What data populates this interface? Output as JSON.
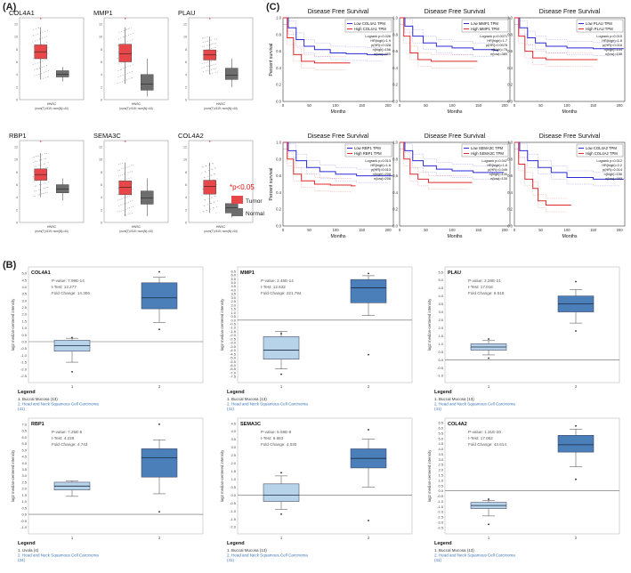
{
  "panels": {
    "a": "(A)",
    "b": "(B)",
    "c": "(C)"
  },
  "legend_a": {
    "sig": "*p<0.05",
    "tumor": "Tumor",
    "normal": "Normal",
    "tumor_color": "#e8474a",
    "normal_color": "#6d6d6d"
  },
  "colors": {
    "low": "#2b2bd6",
    "high": "#e02828",
    "box_b": "#4a7fb9",
    "box_b_light": "#b7d3ea",
    "blue_text": "#3b73b6"
  },
  "chart_data": [
    {
      "type": "box",
      "panel": "A",
      "y_ticks": [
        "0",
        "2",
        "4",
        "6",
        "8",
        "10",
        "12"
      ],
      "ylim": [
        0,
        13
      ],
      "plots": [
        {
          "gene": "COL4A1",
          "xcat": "HNSC",
          "xsub": "(num(T)=519; num(N)=44)",
          "tumor": [
            3.2,
            6.5,
            7.6,
            8.7,
            11.5
          ],
          "normal": [
            2.9,
            3.6,
            4.0,
            4.6,
            5.2
          ]
        },
        {
          "gene": "MMP1",
          "xcat": "HNSC",
          "xsub": "(num(T)=519; num(N)=44)",
          "tumor": [
            2.5,
            6.0,
            7.3,
            8.8,
            11.5
          ],
          "normal": [
            0.5,
            1.5,
            2.5,
            4.0,
            6.5
          ]
        },
        {
          "gene": "PLAU",
          "xcat": "HNSC",
          "xsub": "(num(T)=519; num(N)=44)",
          "tumor": [
            4.0,
            6.3,
            7.1,
            7.9,
            10.0
          ],
          "normal": [
            2.0,
            3.2,
            3.9,
            5.0,
            6.5
          ]
        },
        {
          "gene": "RBP1",
          "xcat": "HNSC",
          "xsub": "(num(T)=519; num(N)=44)",
          "tumor": [
            4.0,
            6.7,
            7.6,
            8.5,
            11.0
          ],
          "normal": [
            3.5,
            4.7,
            5.3,
            6.0,
            7.0
          ]
        },
        {
          "gene": "SEMA3C",
          "xcat": "HNSC",
          "xsub": "(num(T)=519; num(N)=44)",
          "tumor": [
            1.0,
            4.4,
            5.6,
            6.6,
            9.5
          ],
          "normal": [
            1.0,
            2.9,
            3.9,
            5.0,
            7.0
          ]
        },
        {
          "gene": "COL4A2",
          "xcat": "HNSC",
          "xsub": "(num(T)=519; num(N)=44)",
          "tumor": [
            1.5,
            4.5,
            5.7,
            6.7,
            9.5
          ],
          "normal": [
            0.8,
            1.5,
            2.3,
            3.0,
            4.0
          ]
        }
      ]
    },
    {
      "type": "line",
      "panel": "C",
      "title": "Disease Free Survival",
      "xlabel": "Months",
      "ylabel": "Percent survival",
      "x_ticks": [
        0,
        50,
        100,
        150,
        200
      ],
      "y_ticks": [
        "0.0",
        "0.2",
        "0.4",
        "0.6",
        "0.8",
        "1.0"
      ],
      "xlim": [
        0,
        210
      ],
      "ylim": [
        0,
        1
      ],
      "plots": [
        {
          "legend": [
            "Low COL4A1 TPM",
            "High COL4A1 TPM"
          ],
          "stats": [
            "Logrank p=0.026",
            "HR(high)=1.9",
            "p(HR)=0.028",
            "n(high)=156",
            "n(low)=465"
          ],
          "series": [
            {
              "name": "Low COL4A1 TPM",
              "x": [
                0,
                10,
                25,
                40,
                60,
                90,
                120,
                160,
                190
              ],
              "y": [
                1.0,
                0.88,
                0.74,
                0.66,
                0.62,
                0.58,
                0.57,
                0.56,
                0.56
              ]
            },
            {
              "name": "High COL4A1 TPM",
              "x": [
                0,
                8,
                20,
                35,
                60,
                90,
                120
              ],
              "y": [
                1.0,
                0.76,
                0.56,
                0.48,
                0.46,
                0.46,
                0.46
              ]
            }
          ]
        },
        {
          "legend": [
            "Low MMP1 TPM",
            "High MMP1 TPM"
          ],
          "stats": [
            "Logrank p=0.0071",
            "HR(high)=1.7",
            "p(HR)=0.0076",
            "n(high)=78",
            "n(low)=389"
          ],
          "series": [
            {
              "name": "Low MMP1 TPM",
              "x": [
                0,
                10,
                25,
                45,
                70,
                100,
                140,
                180
              ],
              "y": [
                1.0,
                0.9,
                0.78,
                0.7,
                0.66,
                0.64,
                0.62,
                0.61
              ]
            },
            {
              "name": "High MMP1 TPM",
              "x": [
                0,
                8,
                20,
                35,
                60,
                100,
                140
              ],
              "y": [
                1.0,
                0.78,
                0.58,
                0.5,
                0.48,
                0.48,
                0.48
              ]
            }
          ]
        },
        {
          "legend": [
            "Low PLAU TPM",
            "High PLAU TPM"
          ],
          "stats": [
            "Logrank p=0.015",
            "HR(high)=1.8",
            "p(HR)=0.016",
            "n(high)=104",
            "n(low)=158"
          ],
          "series": [
            {
              "name": "Low PLAU TPM",
              "x": [
                0,
                10,
                25,
                40,
                60,
                100,
                150,
                200
              ],
              "y": [
                1.0,
                0.88,
                0.76,
                0.7,
                0.66,
                0.64,
                0.63,
                0.63
              ]
            },
            {
              "name": "High PLAU TPM",
              "x": [
                0,
                8,
                20,
                35,
                60,
                100,
                150
              ],
              "y": [
                1.0,
                0.78,
                0.6,
                0.52,
                0.5,
                0.5,
                0.5
              ]
            }
          ]
        },
        {
          "legend": [
            "Low RBP1 TPM",
            "High RBP1 TPM"
          ],
          "stats": [
            "Logrank p=0.013",
            "HR(high)=1.6",
            "p(HR)=0.013",
            "n(high)=208",
            "n(low)=208"
          ],
          "series": [
            {
              "name": "Low RBP1 TPM",
              "x": [
                0,
                10,
                25,
                45,
                70,
                100,
                140,
                200
              ],
              "y": [
                1.0,
                0.9,
                0.78,
                0.7,
                0.65,
                0.62,
                0.6,
                0.6
              ]
            },
            {
              "name": "High RBP1 TPM",
              "x": [
                0,
                8,
                20,
                35,
                60,
                90,
                130
              ],
              "y": [
                1.0,
                0.8,
                0.62,
                0.54,
                0.5,
                0.49,
                0.48
              ]
            }
          ]
        },
        {
          "legend": [
            "Low SEMA3C TPM",
            "High SEMA3C TPM"
          ],
          "stats": [
            "Logrank p=0.047",
            "HR(high)=1.6",
            "p(HR)=0.049",
            "n(high)=130",
            "n(low)=130"
          ],
          "series": [
            {
              "name": "Low SEMA3C TPM",
              "x": [
                0,
                10,
                25,
                45,
                70,
                100,
                140,
                190
              ],
              "y": [
                1.0,
                0.9,
                0.78,
                0.72,
                0.68,
                0.66,
                0.64,
                0.64
              ]
            },
            {
              "name": "High SEMA3C TPM",
              "x": [
                0,
                8,
                20,
                35,
                55,
                90,
                130
              ],
              "y": [
                1.0,
                0.8,
                0.62,
                0.56,
                0.52,
                0.52,
                0.52
              ]
            }
          ]
        },
        {
          "legend": [
            "Low COL4A2 TPM",
            "High COL4A2 TPM"
          ],
          "stats": [
            "Logrank p=0.012",
            "HR(high)=2.2",
            "p(HR)=0.014",
            "n(high)=156",
            "n(low)=493"
          ],
          "series": [
            {
              "name": "Low COL4A2 TPM",
              "x": [
                0,
                10,
                25,
                45,
                70,
                100,
                150,
                200
              ],
              "y": [
                1.0,
                0.9,
                0.78,
                0.7,
                0.64,
                0.58,
                0.56,
                0.56
              ]
            },
            {
              "name": "High COL4A2 TPM",
              "x": [
                0,
                8,
                20,
                35,
                45,
                60,
                100
              ],
              "y": [
                1.0,
                0.74,
                0.56,
                0.45,
                0.3,
                0.25,
                0.25
              ]
            }
          ]
        }
      ]
    },
    {
      "type": "box",
      "panel": "B",
      "ylabel": "log2 median-centered intensity",
      "legend_title": "Legend",
      "plots": [
        {
          "gene": "COL4A1",
          "pvalue": "P-value: 7.99E-14",
          "ttest": "t-Test: 12.277",
          "fold": "Fold Change: 14.306",
          "y_ticks": [
            "-2.5",
            "-2.0",
            "-1.5",
            "-1.0",
            "-0.5",
            "0.0",
            "0.5",
            "1.0",
            "1.5",
            "2.0",
            "2.5",
            "3.0",
            "3.5",
            "4.0",
            "4.5",
            "5.0"
          ],
          "ylim": [
            -2.6,
            5.2
          ],
          "box1": [
            -1.5,
            -0.7,
            -0.3,
            0.1,
            0.25
          ],
          "out1": [
            0.3,
            -2.2
          ],
          "box2": [
            1.4,
            2.4,
            3.2,
            4.3,
            4.7
          ],
          "out2": [
            5.1,
            0.9
          ],
          "legend": [
            "1. Buccal Mucosa (13)",
            "2. Head and Neck Squamous Cell Carcinoma",
            "(41)"
          ]
        },
        {
          "gene": "MMP1",
          "pvalue": "P-value: 2.45E-14",
          "ttest": "t-Test: 12.622",
          "fold": "Fold Change: 221.794",
          "y_ticks": [
            "-7.5",
            "-7.0",
            "-6.5",
            "-6.0",
            "-5.5",
            "-5.0",
            "-4.5",
            "-4.0",
            "-3.5",
            "-3.0",
            "-2.5",
            "-2.0",
            "-1.5",
            "-1.0",
            "-0.5",
            "0.0",
            "0.5",
            "1.0",
            "1.5",
            "2.0",
            "2.5",
            "3.0",
            "3.5",
            "4.0",
            "4.5",
            "5.0",
            "5.5",
            "6.0",
            "6.5"
          ],
          "ylim": [
            -7.6,
            6.6
          ],
          "box1": [
            -6.5,
            -5.2,
            -4.0,
            -2.2,
            -1.5
          ],
          "out1": [
            -1.8,
            -7.2
          ],
          "box2": [
            0.6,
            2.3,
            4.3,
            5.4,
            5.9
          ],
          "out2": [
            6.2,
            -4.6
          ],
          "legend": [
            "1. Buccal Mucosa (13)",
            "2. Head and Neck Squamous Cell Carcinoma",
            "(41)"
          ]
        },
        {
          "gene": "PLAU",
          "pvalue": "P-value: 2.26E-21",
          "ttest": "t-Test: 17.016",
          "fold": "Fold Change: 6.510",
          "y_ticks": [
            "-1.0",
            "-0.5",
            "0.0",
            "0.5",
            "1.0",
            "1.5",
            "2.0",
            "2.5",
            "3.0",
            "3.5",
            "4.0",
            "4.5",
            "5.0",
            "5.5"
          ],
          "ylim": [
            -1.1,
            5.6
          ],
          "box1": [
            0.3,
            0.6,
            0.8,
            1.0,
            1.2
          ],
          "out1": [
            1.3,
            0.1
          ],
          "box2": [
            2.3,
            3.0,
            3.5,
            4.0,
            4.4
          ],
          "out2": [
            4.9,
            1.8
          ],
          "legend": [
            "1. Buccal Mucosa (13)",
            "2. Head and Neck Squamous Cell Carcinoma",
            "(41)"
          ]
        },
        {
          "gene": "RBP1",
          "pvalue": "P-value: 7.25E-5",
          "ttest": "t-Test: 4.228",
          "fold": "Fold Change: 4.743",
          "y_ticks": [
            "-1.0",
            "-0.5",
            "0.0",
            "0.5",
            "1.0",
            "1.5",
            "2.0",
            "2.5",
            "3.0",
            "3.5",
            "4.0",
            "4.5",
            "5.0",
            "5.5",
            "6.0",
            "6.5",
            "7.0"
          ],
          "ylim": [
            -1.1,
            7.2
          ],
          "box1": [
            1.4,
            1.9,
            2.2,
            2.5,
            2.6
          ],
          "out1": [],
          "box2": [
            1.6,
            2.9,
            4.4,
            5.1,
            5.8
          ],
          "out2": [
            7.0,
            0.2
          ],
          "legend": [
            "1. Uvula (4)",
            "2. Head and Neck Squamous Cell Carcinoma",
            "(34)"
          ]
        },
        {
          "gene": "SEMA3C",
          "pvalue": "P-value: 5.59E-8",
          "ttest": "t-Test: 6.683",
          "fold": "Fold Change: 4.030",
          "y_ticks": [
            "-2.0",
            "-1.5",
            "-1.0",
            "-0.5",
            "0.0",
            "0.5",
            "1.0",
            "1.5",
            "2.0",
            "2.5",
            "3.0",
            "3.5",
            "4.0",
            "4.5"
          ],
          "ylim": [
            -2.1,
            4.6
          ],
          "box1": [
            -0.9,
            -0.4,
            0.0,
            0.7,
            1.2
          ],
          "out1": [
            1.4,
            -1.2
          ],
          "box2": [
            0.5,
            1.7,
            2.3,
            2.9,
            3.5
          ],
          "out2": [
            4.1,
            -1.6
          ],
          "legend": [
            "1. Buccal Mucosa (13)",
            "2. Head and Neck Squamous Cell Carcinoma",
            "(41)"
          ]
        },
        {
          "gene": "COL4A2",
          "pvalue": "P-value: 1.31E-20",
          "ttest": "t-Test: 17.052",
          "fold": "Fold Change: 43.614",
          "y_ticks": [
            "-3.5",
            "-3.0",
            "-2.5",
            "-2.0",
            "-1.5",
            "-1.0",
            "-0.5",
            "0.0",
            "0.5",
            "1.0",
            "1.5",
            "2.0",
            "2.5",
            "3.0",
            "3.5",
            "4.0",
            "4.5",
            "5.0",
            "5.5",
            "6.0",
            "6.5"
          ],
          "ylim": [
            -3.6,
            6.6
          ],
          "box1": [
            -2.4,
            -1.7,
            -1.4,
            -1.1,
            -0.9
          ],
          "out1": [
            -0.8,
            -3.2
          ],
          "box2": [
            2.3,
            3.7,
            4.4,
            5.3,
            5.9
          ],
          "out2": [
            6.2,
            1.1
          ],
          "legend": [
            "1. Buccal Mucosa (13)",
            "2. Head and Neck Squamous Cell Carcinoma",
            "(41)"
          ]
        }
      ]
    }
  ]
}
